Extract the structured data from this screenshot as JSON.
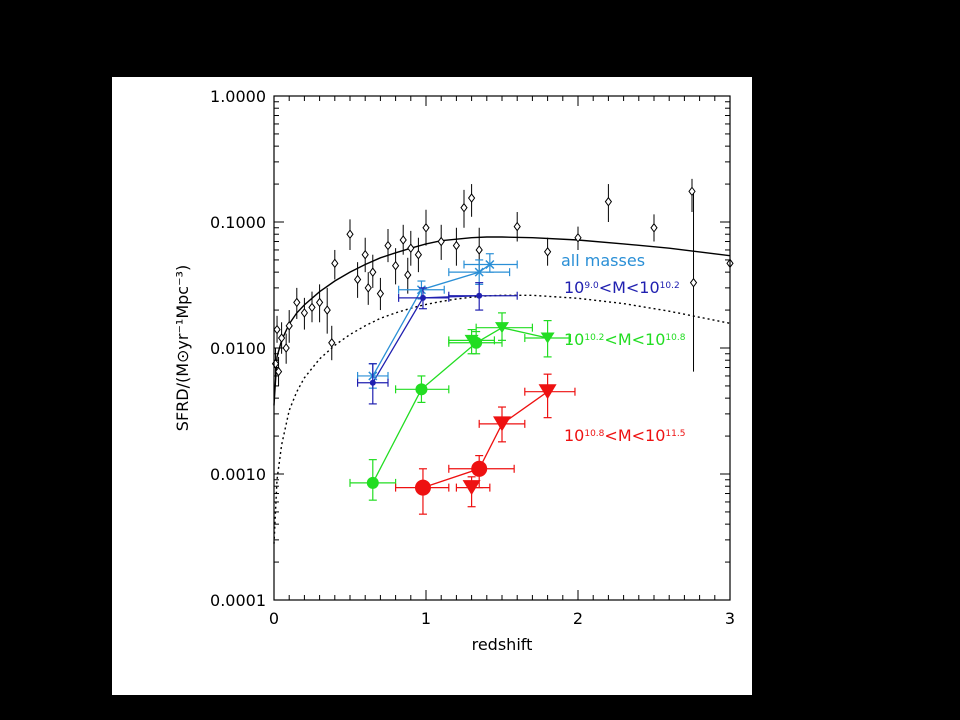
{
  "chart_data": {
    "type": "scatter",
    "title": "",
    "xlabel": "redshift",
    "ylabel": "SFRD/(M⊙yr⁻¹Mpc⁻³)",
    "xlim": [
      0,
      3
    ],
    "ylim": [
      0.0001,
      1.0
    ],
    "yscale": "log",
    "x_ticks": [
      0,
      1,
      2,
      3
    ],
    "y_ticks": [
      0.0001,
      0.001,
      0.01,
      0.1,
      1.0
    ],
    "y_tick_labels": [
      "0.0001",
      "0.0010",
      "0.0100",
      "0.1000",
      "1.0000"
    ],
    "grid": false,
    "legend": [
      {
        "text": "all masses",
        "color": "#2a8fd6"
      },
      {
        "base": "10",
        "sup1": "9.0",
        "mid": "<M<10",
        "sup2": "10.2",
        "color": "#2020b0"
      },
      {
        "base": "10",
        "sup1": "10.2",
        "mid": "<M<10",
        "sup2": "10.8",
        "color": "#22dd22"
      },
      {
        "base": "10",
        "sup1": "10.8",
        "mid": "<M<10",
        "sup2": "11.5",
        "color": "#ee1111"
      }
    ],
    "curves": [
      {
        "style": "solid",
        "x": [
          0.0,
          0.02,
          0.05,
          0.1,
          0.15,
          0.2,
          0.3,
          0.4,
          0.5,
          0.6,
          0.7,
          0.8,
          0.9,
          1.0,
          1.1,
          1.2,
          1.3,
          1.4,
          1.5,
          1.7,
          2.0,
          2.3,
          2.6,
          3.0
        ],
        "y": [
          0.0035,
          0.0085,
          0.0115,
          0.0155,
          0.019,
          0.022,
          0.028,
          0.034,
          0.04,
          0.046,
          0.052,
          0.057,
          0.062,
          0.067,
          0.071,
          0.073,
          0.075,
          0.076,
          0.076,
          0.075,
          0.072,
          0.067,
          0.062,
          0.054
        ]
      },
      {
        "style": "dotted",
        "x": [
          0.0,
          0.02,
          0.05,
          0.1,
          0.15,
          0.2,
          0.3,
          0.4,
          0.5,
          0.6,
          0.7,
          0.8,
          0.9,
          1.0,
          1.1,
          1.2,
          1.3,
          1.4,
          1.5,
          1.7,
          2.0,
          2.3,
          2.6,
          3.0
        ],
        "y": [
          0.00028,
          0.0009,
          0.0017,
          0.0032,
          0.0045,
          0.0058,
          0.0082,
          0.0105,
          0.0128,
          0.015,
          0.0172,
          0.019,
          0.0207,
          0.0222,
          0.0234,
          0.0245,
          0.0253,
          0.0259,
          0.0262,
          0.0262,
          0.0248,
          0.0225,
          0.0196,
          0.0157
        ]
      }
    ],
    "literature_points": [
      {
        "x": 0.01,
        "y": 0.0075,
        "ylo": 0.0055,
        "yhi": 0.01
      },
      {
        "x": 0.02,
        "y": 0.014,
        "ylo": 0.011,
        "yhi": 0.018
      },
      {
        "x": 0.03,
        "y": 0.0065,
        "ylo": 0.005,
        "yhi": 0.0085
      },
      {
        "x": 0.05,
        "y": 0.012,
        "ylo": 0.009,
        "yhi": 0.016
      },
      {
        "x": 0.08,
        "y": 0.01,
        "ylo": 0.0075,
        "yhi": 0.013
      },
      {
        "x": 0.1,
        "y": 0.015,
        "ylo": 0.011,
        "yhi": 0.02
      },
      {
        "x": 0.15,
        "y": 0.023,
        "ylo": 0.017,
        "yhi": 0.03
      },
      {
        "x": 0.2,
        "y": 0.019,
        "ylo": 0.014,
        "yhi": 0.025
      },
      {
        "x": 0.25,
        "y": 0.021,
        "ylo": 0.016,
        "yhi": 0.028
      },
      {
        "x": 0.3,
        "y": 0.023,
        "ylo": 0.016,
        "yhi": 0.032
      },
      {
        "x": 0.35,
        "y": 0.02,
        "ylo": 0.013,
        "yhi": 0.03
      },
      {
        "x": 0.38,
        "y": 0.011,
        "ylo": 0.008,
        "yhi": 0.015
      },
      {
        "x": 0.4,
        "y": 0.047,
        "ylo": 0.035,
        "yhi": 0.06
      },
      {
        "x": 0.5,
        "y": 0.08,
        "ylo": 0.06,
        "yhi": 0.105
      },
      {
        "x": 0.55,
        "y": 0.035,
        "ylo": 0.025,
        "yhi": 0.048
      },
      {
        "x": 0.6,
        "y": 0.055,
        "ylo": 0.04,
        "yhi": 0.075
      },
      {
        "x": 0.62,
        "y": 0.03,
        "ylo": 0.022,
        "yhi": 0.04
      },
      {
        "x": 0.65,
        "y": 0.04,
        "ylo": 0.03,
        "yhi": 0.055
      },
      {
        "x": 0.7,
        "y": 0.027,
        "ylo": 0.02,
        "yhi": 0.036
      },
      {
        "x": 0.75,
        "y": 0.065,
        "ylo": 0.048,
        "yhi": 0.088
      },
      {
        "x": 0.8,
        "y": 0.045,
        "ylo": 0.032,
        "yhi": 0.062
      },
      {
        "x": 0.85,
        "y": 0.072,
        "ylo": 0.055,
        "yhi": 0.095
      },
      {
        "x": 0.88,
        "y": 0.038,
        "ylo": 0.027,
        "yhi": 0.052
      },
      {
        "x": 0.9,
        "y": 0.062,
        "ylo": 0.045,
        "yhi": 0.085
      },
      {
        "x": 0.95,
        "y": 0.055,
        "ylo": 0.04,
        "yhi": 0.075
      },
      {
        "x": 1.0,
        "y": 0.09,
        "ylo": 0.065,
        "yhi": 0.125
      },
      {
        "x": 1.1,
        "y": 0.07,
        "ylo": 0.05,
        "yhi": 0.095
      },
      {
        "x": 1.2,
        "y": 0.065,
        "ylo": 0.045,
        "yhi": 0.09
      },
      {
        "x": 1.25,
        "y": 0.13,
        "ylo": 0.09,
        "yhi": 0.18
      },
      {
        "x": 1.3,
        "y": 0.155,
        "ylo": 0.11,
        "yhi": 0.2
      },
      {
        "x": 1.35,
        "y": 0.06,
        "ylo": 0.04,
        "yhi": 0.09
      },
      {
        "x": 1.6,
        "y": 0.092,
        "ylo": 0.07,
        "yhi": 0.12
      },
      {
        "x": 1.8,
        "y": 0.058,
        "ylo": 0.045,
        "yhi": 0.075
      },
      {
        "x": 2.0,
        "y": 0.075,
        "ylo": 0.06,
        "yhi": 0.092
      },
      {
        "x": 2.2,
        "y": 0.145,
        "ylo": 0.1,
        "yhi": 0.2
      },
      {
        "x": 2.5,
        "y": 0.09,
        "ylo": 0.07,
        "yhi": 0.115
      },
      {
        "x": 2.75,
        "y": 0.175,
        "ylo": 0.12,
        "yhi": 0.22
      },
      {
        "x": 2.76,
        "y": 0.033,
        "ylo": 0.0065,
        "yhi": 0.17
      },
      {
        "x": 3.0,
        "y": 0.047,
        "ylo": 0.04,
        "yhi": 0.055
      }
    ],
    "series": [
      {
        "marker": "x",
        "color": "#2a8fd6",
        "points": [
          {
            "x": 0.65,
            "y": 0.006,
            "xlo": 0.55,
            "xhi": 0.75,
            "ylo": 0.0048,
            "yhi": 0.0075
          },
          {
            "x": 0.97,
            "y": 0.029,
            "xlo": 0.82,
            "xhi": 1.12,
            "ylo": 0.0245,
            "yhi": 0.034
          },
          {
            "x": 1.35,
            "y": 0.04,
            "xlo": 1.15,
            "xhi": 1.55,
            "ylo": 0.032,
            "yhi": 0.05
          },
          {
            "x": 1.42,
            "y": 0.046,
            "xlo": 1.25,
            "xhi": 1.6,
            "ylo": 0.04,
            "yhi": 0.056
          }
        ]
      },
      {
        "marker": "dot-small",
        "color": "#2020b0",
        "points": [
          {
            "x": 0.65,
            "y": 0.0053,
            "xlo": 0.55,
            "xhi": 0.75,
            "ylo": 0.0036,
            "yhi": 0.0075
          },
          {
            "x": 0.98,
            "y": 0.025,
            "xlo": 0.82,
            "xhi": 1.15,
            "ylo": 0.0205,
            "yhi": 0.03
          },
          {
            "x": 1.35,
            "y": 0.026,
            "xlo": 1.15,
            "xhi": 1.6,
            "ylo": 0.02,
            "yhi": 0.033
          }
        ]
      },
      {
        "marker": "circle",
        "color": "#22dd22",
        "points": [
          {
            "x": 0.65,
            "y": 0.00085,
            "xlo": 0.5,
            "xhi": 0.8,
            "ylo": 0.00062,
            "yhi": 0.0013
          },
          {
            "x": 0.97,
            "y": 0.0047,
            "xlo": 0.8,
            "xhi": 1.15,
            "ylo": 0.0037,
            "yhi": 0.006
          },
          {
            "x": 1.33,
            "y": 0.011,
            "xlo": 1.15,
            "xhi": 1.5,
            "ylo": 0.009,
            "yhi": 0.0135
          }
        ]
      },
      {
        "marker": "triangle-down",
        "color": "#22dd22",
        "points": [
          {
            "x": 1.3,
            "y": 0.0115,
            "xlo": 1.15,
            "xhi": 1.45,
            "ylo": 0.009,
            "yhi": 0.014
          },
          {
            "x": 1.5,
            "y": 0.0145,
            "xlo": 1.33,
            "xhi": 1.7,
            "ylo": 0.0115,
            "yhi": 0.019
          },
          {
            "x": 1.8,
            "y": 0.012,
            "xlo": 1.65,
            "xhi": 1.95,
            "ylo": 0.0085,
            "yhi": 0.0165
          }
        ]
      },
      {
        "marker": "circle",
        "color": "#ee1111",
        "points": [
          {
            "x": 0.98,
            "y": 0.00078,
            "xlo": 0.8,
            "xhi": 1.15,
            "ylo": 0.00048,
            "yhi": 0.0011
          },
          {
            "x": 1.35,
            "y": 0.0011,
            "xlo": 1.15,
            "xhi": 1.58,
            "ylo": 0.00078,
            "yhi": 0.0014
          }
        ]
      },
      {
        "marker": "triangle-down",
        "color": "#ee1111",
        "points": [
          {
            "x": 1.3,
            "y": 0.00078,
            "xlo": 1.2,
            "xhi": 1.42,
            "ylo": 0.00055,
            "yhi": 0.00095
          },
          {
            "x": 1.5,
            "y": 0.0025,
            "xlo": 1.35,
            "xhi": 1.65,
            "ylo": 0.0018,
            "yhi": 0.0034
          },
          {
            "x": 1.8,
            "y": 0.0045,
            "xlo": 1.65,
            "xhi": 1.98,
            "ylo": 0.0028,
            "yhi": 0.0062
          }
        ]
      }
    ],
    "connectors": [
      {
        "color": "#2a8fd6",
        "points": [
          [
            0.65,
            0.006
          ],
          [
            0.97,
            0.029
          ],
          [
            1.35,
            0.04
          ],
          [
            1.42,
            0.046
          ]
        ]
      },
      {
        "color": "#2020b0",
        "points": [
          [
            0.65,
            0.0053
          ],
          [
            0.98,
            0.025
          ],
          [
            1.35,
            0.026
          ]
        ]
      },
      {
        "color": "#22dd22",
        "points": [
          [
            0.65,
            0.00085
          ],
          [
            0.97,
            0.0047
          ],
          [
            1.33,
            0.011
          ],
          [
            1.5,
            0.0145
          ],
          [
            1.8,
            0.012
          ]
        ]
      },
      {
        "color": "#ee1111",
        "points": [
          [
            0.98,
            0.00078
          ],
          [
            1.35,
            0.0011
          ],
          [
            1.5,
            0.0025
          ],
          [
            1.8,
            0.0045
          ]
        ]
      }
    ]
  }
}
